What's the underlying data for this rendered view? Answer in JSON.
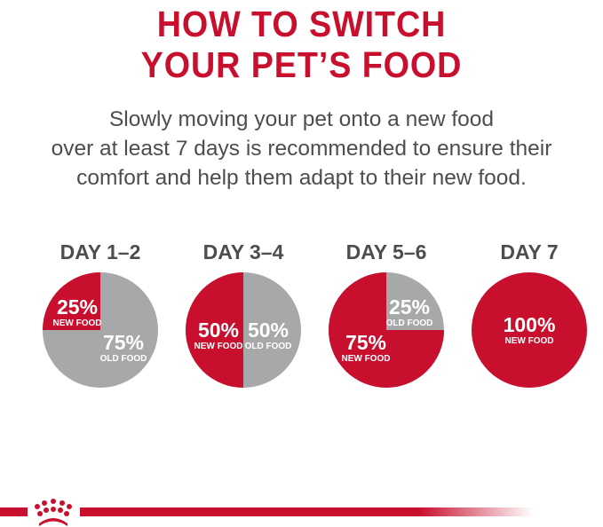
{
  "title": {
    "line1": "HOW TO SWITCH",
    "line2": "YOUR PET’S FOOD"
  },
  "subtitle": [
    "Slowly moving your pet onto a new food",
    "over at least 7 days is recommended to ensure their",
    "comfort and help them adapt to their new food."
  ],
  "colors": {
    "new_food": "#c8102e",
    "old_food": "#a7a8aa",
    "heading": "#4d4d4d",
    "brand": "#c8102e"
  },
  "logo": "crown-logo",
  "chart_data": [
    {
      "type": "pie",
      "title": "DAY 1–2",
      "slices": [
        {
          "label": "NEW FOOD",
          "value": 25,
          "text": "25%"
        },
        {
          "label": "OLD FOOD",
          "value": 75,
          "text": "75%"
        }
      ]
    },
    {
      "type": "pie",
      "title": "DAY 3–4",
      "slices": [
        {
          "label": "NEW FOOD",
          "value": 50,
          "text": "50%"
        },
        {
          "label": "OLD FOOD",
          "value": 50,
          "text": "50%"
        }
      ]
    },
    {
      "type": "pie",
      "title": "DAY 5–6",
      "slices": [
        {
          "label": "NEW FOOD",
          "value": 75,
          "text": "75%"
        },
        {
          "label": "OLD FOOD",
          "value": 25,
          "text": "25%"
        }
      ]
    },
    {
      "type": "pie",
      "title": "DAY 7",
      "slices": [
        {
          "label": "NEW FOOD",
          "value": 100,
          "text": "100%"
        }
      ]
    }
  ]
}
